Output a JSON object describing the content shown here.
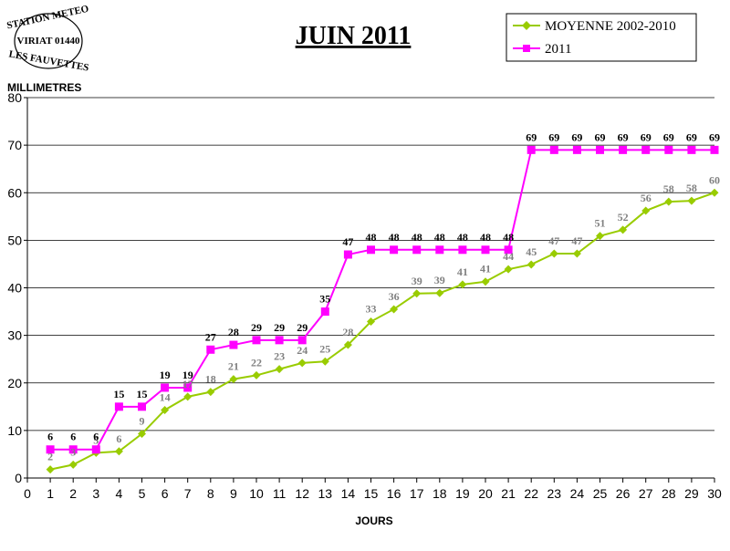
{
  "stamp": {
    "top": "STATION METEO",
    "middle": "VIRIAT 01440",
    "bottom": "LES FAUVETTES"
  },
  "chart_data": {
    "type": "line",
    "title": "JUIN 2011",
    "xlabel": "JOURS",
    "ylabel": "MILLIMETRES",
    "xlim": [
      0,
      30
    ],
    "ylim": [
      0,
      80
    ],
    "yticks": [
      0,
      10,
      20,
      30,
      40,
      50,
      60,
      70,
      80
    ],
    "x": [
      1,
      2,
      3,
      4,
      5,
      6,
      7,
      8,
      9,
      10,
      11,
      12,
      13,
      14,
      15,
      16,
      17,
      18,
      19,
      20,
      21,
      22,
      23,
      24,
      25,
      26,
      27,
      28,
      29,
      30
    ],
    "legend_position": "top-right",
    "series": [
      {
        "name": "MOYENNE 2002-2010",
        "color": "#99cc00",
        "marker": "diamond",
        "values": [
          1.8,
          2.8,
          5.3,
          5.6,
          9.3,
          14.3,
          17.1,
          18.1,
          20.8,
          21.6,
          22.9,
          24.2,
          24.5,
          28.0,
          32.9,
          35.5,
          38.8,
          38.9,
          40.7,
          41.3,
          43.9,
          44.9,
          47.2,
          47.2,
          50.9,
          52.2,
          56.2,
          58.1,
          58.3,
          60.0
        ],
        "labels": [
          "2",
          "3",
          "5",
          "6",
          "9",
          "14",
          "17",
          "18",
          "21",
          "22",
          "23",
          "24",
          "25",
          "28",
          "33",
          "36",
          "39",
          "39",
          "41",
          "41",
          "44",
          "45",
          "47",
          "47",
          "51",
          "52",
          "56",
          "58",
          "58",
          "60"
        ]
      },
      {
        "name": "2011",
        "color": "#ff00ff",
        "marker": "square",
        "values": [
          6,
          6,
          6,
          15,
          15,
          19,
          19,
          27,
          28,
          29,
          29,
          29,
          35,
          47,
          48,
          48,
          48,
          48,
          48,
          48,
          48,
          69,
          69,
          69,
          69,
          69,
          69,
          69,
          69,
          69
        ],
        "labels": [
          "6",
          "6",
          "6",
          "15",
          "15",
          "19",
          "19",
          "27",
          "28",
          "29",
          "29",
          "29",
          "35",
          "47",
          "48",
          "48",
          "48",
          "48",
          "48",
          "48",
          "48",
          "69",
          "69",
          "69",
          "69",
          "69",
          "69",
          "69",
          "69",
          "69"
        ]
      }
    ]
  }
}
